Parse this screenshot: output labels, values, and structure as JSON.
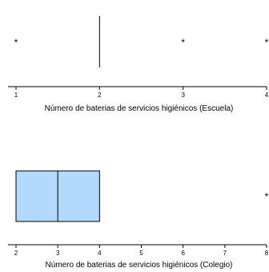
{
  "chart_data": [
    {
      "type": "boxplot",
      "xlabel": "Número de baterias de servicios higiénicos (Escuela)",
      "xlim": [
        1,
        4
      ],
      "ticks": [
        1,
        2,
        3,
        4
      ],
      "tick_labels": [
        "1",
        "2",
        "3",
        "4"
      ],
      "box": {
        "q1": 2,
        "median": 2,
        "q3": 2,
        "whisker_low": 2,
        "whisker_high": 2
      },
      "outliers": [
        1,
        3,
        4
      ],
      "outlier_marker": "*",
      "box_color": "#ffffff"
    },
    {
      "type": "boxplot",
      "xlabel": "Número de baterias de servicios higiénicos (Colegio)",
      "xlim": [
        2,
        8
      ],
      "ticks": [
        2,
        3,
        4,
        5,
        6,
        7,
        8
      ],
      "tick_labels": [
        "2",
        "3",
        "4",
        "5",
        "6",
        "7",
        "8"
      ],
      "box": {
        "q1": 2,
        "median": 3,
        "q3": 4,
        "whisker_low": 2,
        "whisker_high": 4
      },
      "outliers": [
        8
      ],
      "outlier_marker": "*",
      "box_color": "#b3d9ff"
    }
  ]
}
